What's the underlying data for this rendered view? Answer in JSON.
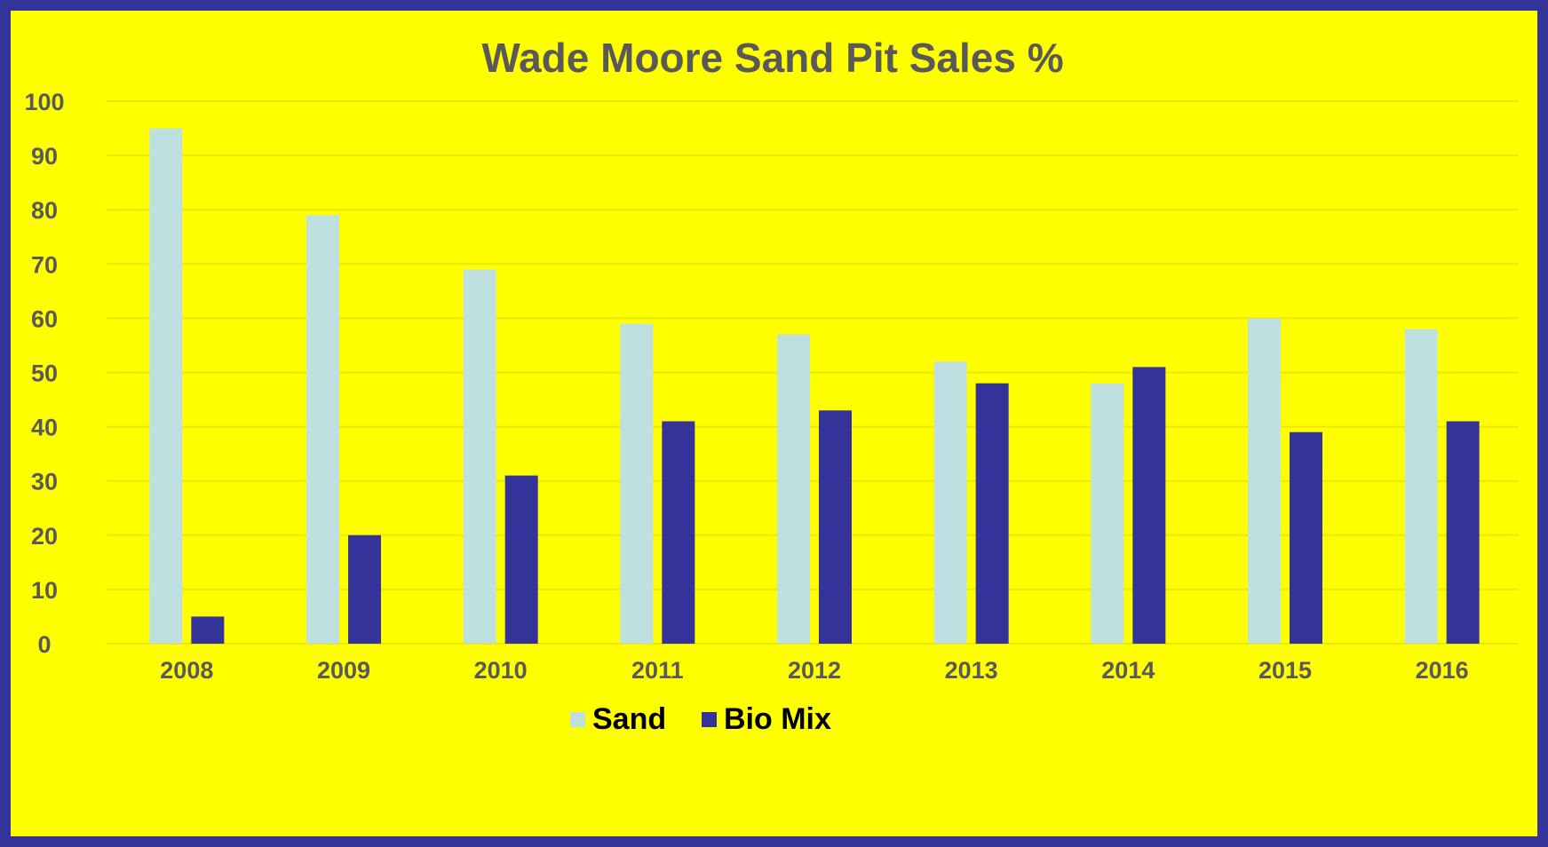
{
  "colors": {
    "border": "#33339a",
    "background": "#ffff00",
    "sand": "#bfe0e0",
    "bio_mix": "#33339a",
    "text": "#595959",
    "legend_text": "#000000"
  },
  "chart_data": {
    "type": "bar",
    "title": "Wade Moore Sand Pit Sales %",
    "xlabel": "",
    "ylabel": "",
    "categories": [
      "2008",
      "2009",
      "2010",
      "2011",
      "2012",
      "2013",
      "2014",
      "2015",
      "2016"
    ],
    "series": [
      {
        "name": "Sand",
        "values": [
          95,
          79,
          69,
          59,
          57,
          52,
          48,
          60,
          58
        ],
        "color": "#bfe0e0"
      },
      {
        "name": "Bio Mix",
        "values": [
          5,
          20,
          31,
          41,
          43,
          48,
          51,
          39,
          41
        ],
        "color": "#33339a"
      }
    ],
    "yticks": [
      "0",
      "10",
      "20",
      "30",
      "40",
      "50",
      "60",
      "70",
      "80",
      "90",
      "100"
    ],
    "ylim": [
      0,
      100
    ],
    "grid": true,
    "legend_position": "bottom"
  }
}
